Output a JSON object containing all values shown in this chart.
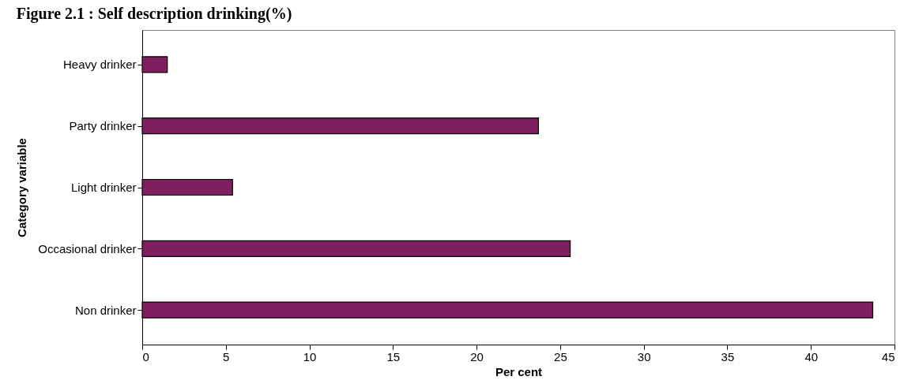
{
  "chart_data": {
    "type": "bar",
    "orientation": "horizontal",
    "title": "Figure 2.1 : Self description drinking(%)",
    "xlabel": "Per cent",
    "ylabel": "Category variable",
    "categories": [
      "Heavy drinker",
      "Party drinker",
      "Light drinker",
      "Occasional drinker",
      "Non drinker"
    ],
    "values": [
      1.5,
      23.7,
      5.4,
      25.6,
      43.7
    ],
    "color": "#7f1f5f",
    "xlim": [
      0,
      45
    ],
    "xticks": [
      0,
      5,
      10,
      15,
      20,
      25,
      30,
      35,
      40,
      45
    ],
    "grid": false
  }
}
